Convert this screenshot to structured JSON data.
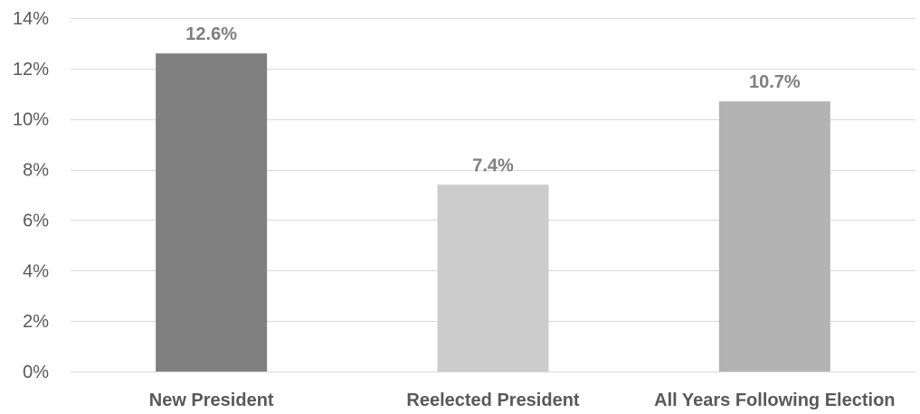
{
  "chart_data": {
    "type": "bar",
    "categories": [
      "New President",
      "Reelected President",
      "All Years Following Election"
    ],
    "values": [
      12.6,
      7.4,
      10.7
    ],
    "data_labels": [
      "12.6%",
      "7.4%",
      "10.7%"
    ],
    "colors": [
      "#808080",
      "#cccccc",
      "#b3b3b3"
    ],
    "title": "",
    "xlabel": "",
    "ylabel": "",
    "ylim": [
      0,
      14
    ],
    "yticks": [
      0,
      2,
      4,
      6,
      8,
      10,
      12,
      14
    ],
    "ytick_labels": [
      "0%",
      "2%",
      "4%",
      "6%",
      "8%",
      "10%",
      "12%",
      "14%"
    ],
    "grid": true,
    "legend": "none"
  }
}
